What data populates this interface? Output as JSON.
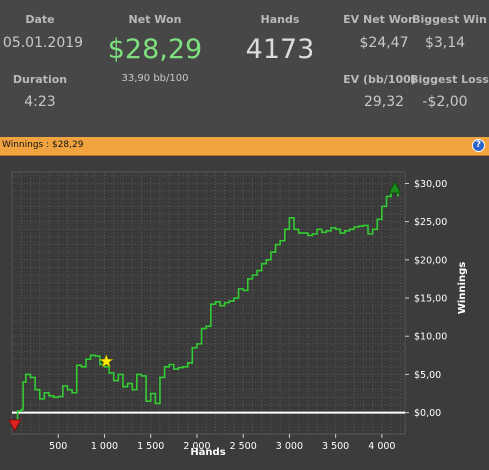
{
  "stats": {
    "date": {
      "label": "Date",
      "value": "05.01.2019"
    },
    "duration": {
      "label": "Duration",
      "value": "4:23"
    },
    "net_won": {
      "label": "Net Won",
      "value": "$28,29",
      "sub": "33,90 bb/100"
    },
    "hands": {
      "label": "Hands",
      "value": "4173"
    },
    "ev_net_won": {
      "label": "EV Net Won",
      "value": "$24,47"
    },
    "biggest_win": {
      "label": "Biggest Win",
      "value": "$3,14"
    },
    "ev_bb100": {
      "label": "EV (bb/100)",
      "value": "29,32"
    },
    "biggest_loss": {
      "label": "Biggest Loss",
      "value": "-$2,00"
    }
  },
  "banner": {
    "text": "Winnings : $28,29",
    "help_icon": "question-icon"
  },
  "colors": {
    "net_won": "#7fe07f",
    "line": "#33cc33",
    "zero_line": "#ffffff",
    "max_marker": "#1a8c1a",
    "min_marker": "#dd2222",
    "star": "#ffee00"
  },
  "chart_data": {
    "type": "line",
    "xlabel": "Hands",
    "ylabel": "Winnings",
    "xlim": [
      0,
      4250
    ],
    "ylim": [
      -2.8,
      31.5
    ],
    "x_ticks": [
      {
        "v": 500,
        "label": "500"
      },
      {
        "v": 1000,
        "label": "1 000"
      },
      {
        "v": 1500,
        "label": "1 500"
      },
      {
        "v": 2000,
        "label": "2 000"
      },
      {
        "v": 2500,
        "label": "2 500"
      },
      {
        "v": 3000,
        "label": "3 000"
      },
      {
        "v": 3500,
        "label": "3 500"
      },
      {
        "v": 4000,
        "label": "4 000"
      }
    ],
    "y_ticks": [
      {
        "v": 0,
        "label": "$0,00"
      },
      {
        "v": 5,
        "label": "$5,00"
      },
      {
        "v": 10,
        "label": "$10,00"
      },
      {
        "v": 15,
        "label": "$15,00"
      },
      {
        "v": 20,
        "label": "$20,00"
      },
      {
        "v": 25,
        "label": "$25,00"
      },
      {
        "v": 30,
        "label": "$30,00"
      }
    ],
    "grid": true,
    "x": [
      0,
      60,
      100,
      120,
      150,
      200,
      250,
      300,
      350,
      400,
      450,
      500,
      550,
      600,
      650,
      700,
      750,
      800,
      850,
      900,
      950,
      1000,
      1050,
      1100,
      1150,
      1200,
      1250,
      1300,
      1350,
      1400,
      1450,
      1500,
      1550,
      1600,
      1650,
      1700,
      1750,
      1800,
      1850,
      1900,
      1950,
      2000,
      2050,
      2100,
      2150,
      2200,
      2250,
      2300,
      2350,
      2400,
      2450,
      2500,
      2550,
      2600,
      2650,
      2700,
      2750,
      2800,
      2850,
      2900,
      2950,
      3000,
      3050,
      3100,
      3150,
      3200,
      3250,
      3300,
      3350,
      3400,
      3450,
      3500,
      3550,
      3600,
      3650,
      3700,
      3750,
      3800,
      3850,
      3900,
      3950,
      4000,
      4050,
      4100,
      4173
    ],
    "y": [
      -1.5,
      0.2,
      0.4,
      4,
      5,
      4.6,
      3,
      1.8,
      2.6,
      2.2,
      2,
      2.1,
      3.5,
      3,
      2.6,
      6.2,
      6,
      7,
      7.5,
      7.4,
      6.3,
      6,
      5.2,
      4.2,
      5,
      3.4,
      3.8,
      3,
      5,
      4.8,
      1.5,
      2.5,
      1.2,
      4.6,
      6,
      6.3,
      5.7,
      5.9,
      6,
      6.5,
      8.5,
      9,
      11,
      11.3,
      14.2,
      14.5,
      14,
      14.4,
      14.6,
      15,
      16.2,
      16,
      17.5,
      18,
      18.6,
      19.5,
      20,
      21,
      22,
      22.5,
      24,
      25.5,
      24,
      23.5,
      23.5,
      23.2,
      23.4,
      24,
      23.6,
      23.8,
      24.2,
      24,
      23.5,
      23.8,
      24,
      24.3,
      24.4,
      24.5,
      23.4,
      24,
      25.3,
      27,
      28.3,
      29,
      28.29
    ],
    "markers": [
      {
        "kind": "max",
        "x": 4140,
        "y": 29.4
      },
      {
        "kind": "min",
        "x": 30,
        "y": -1.6
      },
      {
        "kind": "star",
        "x": 1020,
        "y": 6.7
      }
    ]
  }
}
